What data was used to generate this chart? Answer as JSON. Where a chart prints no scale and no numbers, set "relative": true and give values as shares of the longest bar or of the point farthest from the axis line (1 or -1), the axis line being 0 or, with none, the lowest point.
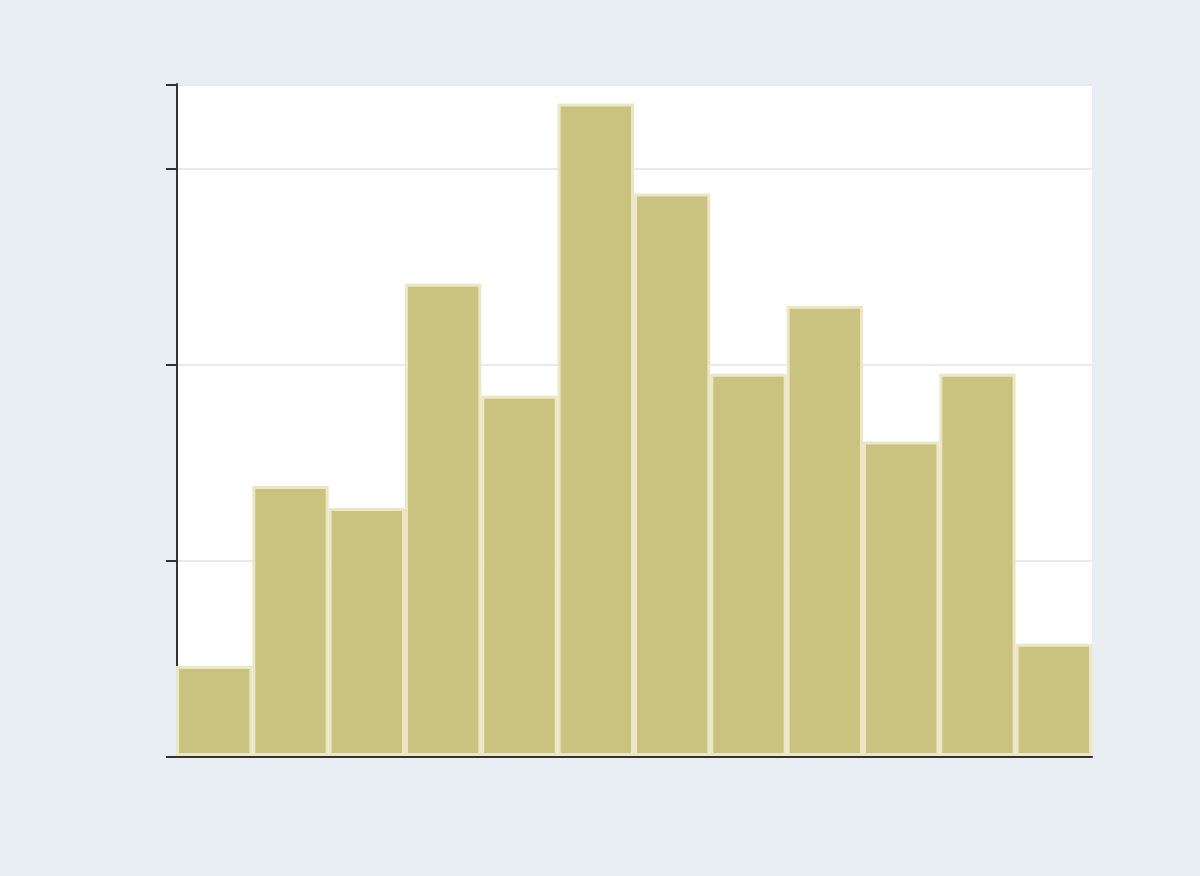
{
  "chart_data": {
    "type": "bar",
    "relative": true,
    "categories": [
      null,
      null,
      null,
      null,
      null,
      null,
      null,
      null,
      null,
      null,
      null,
      null
    ],
    "values": [
      0.138,
      0.414,
      0.38,
      0.724,
      0.552,
      1,
      0.862,
      0.586,
      0.69,
      0.482,
      0.586,
      0.172
    ],
    "color": "#c9c37f",
    "grid": "y"
  }
}
